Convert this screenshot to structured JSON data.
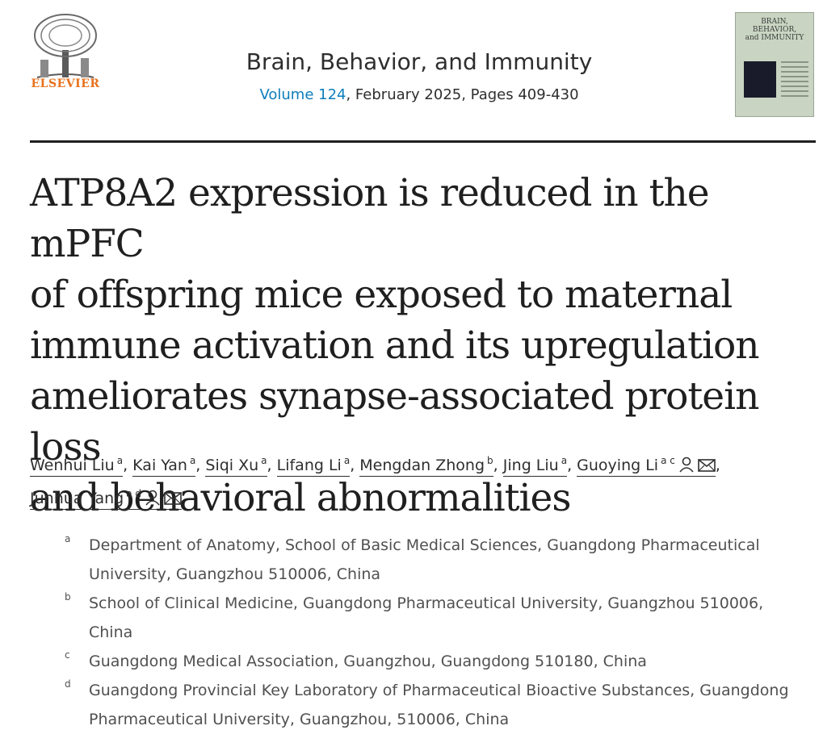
{
  "publisher": {
    "name": "ELSEVIER"
  },
  "journal": {
    "title": "Brain, Behavior, and Immunity",
    "volume_link": "Volume 124",
    "issue_rest": ", February 2025, Pages 409-430",
    "cover_title_lines": [
      "BRAIN,",
      "BEHAVIOR,",
      "and IMMUNITY"
    ]
  },
  "article": {
    "title_lines": [
      "ATP8A2 expression is reduced in the mPFC",
      "of offspring mice exposed to maternal",
      "immune activation and its upregulation",
      "ameliorates synapse-associated protein loss",
      "and behavioral abnormalities"
    ]
  },
  "authors": [
    {
      "name": "Wenhui Liu",
      "sup": "a",
      "sep": ", "
    },
    {
      "name": "Kai Yan",
      "sup": "a",
      "sep": ", "
    },
    {
      "name": "Siqi Xu",
      "sup": "a",
      "sep": ", "
    },
    {
      "name": "Lifang Li",
      "sup": "a",
      "sep": ", "
    },
    {
      "name": "Mengdan Zhong",
      "sup": "b",
      "sep": ", "
    },
    {
      "name": "Jing Liu",
      "sup": "a",
      "sep": ", "
    },
    {
      "name": "Guoying Li",
      "sup": "a c",
      "sep": ", "
    },
    {
      "name": "Junhua Yang",
      "sup": "a d",
      "sep": ""
    }
  ],
  "affiliations": [
    {
      "label": "a",
      "text": "Department of Anatomy, School of Basic Medical Sciences, Guangdong Pharmaceutical University, Guangzhou 510006, China"
    },
    {
      "label": "b",
      "text": "School of Clinical Medicine, Guangdong Pharmaceutical University, Guangzhou 510006, China"
    },
    {
      "label": "c",
      "text": "Guangdong Medical Association, Guangzhou, Guangdong 510180, China"
    },
    {
      "label": "d",
      "text": "Guangdong Provincial Key Laboratory of Pharmaceutical Bioactive Substances, Guangdong Pharmaceutical University, Guangzhou, 510006, China"
    }
  ],
  "colors": {
    "publisher_orange": "#e9711c",
    "link_blue": "#0c7dbb"
  }
}
